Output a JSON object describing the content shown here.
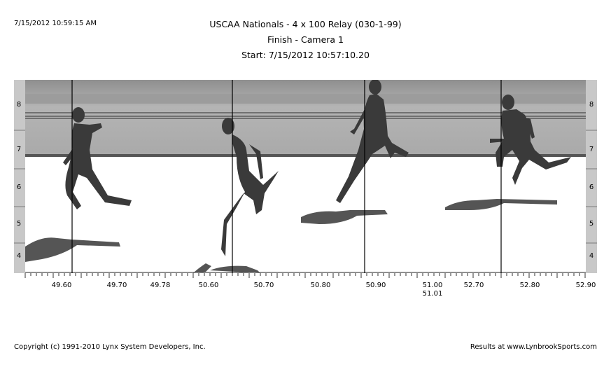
{
  "header": {
    "timestamp": "7/15/2012 10:59:15 AM",
    "title": "USCAA Nationals - 4 x 100 Relay (030-1-99)",
    "subtitle": "Finish - Camera 1",
    "start": "Start: 7/15/2012 10:57:10.20"
  },
  "lanes": {
    "left": [
      "8",
      "7",
      "6",
      "5",
      "4"
    ],
    "right": [
      "8",
      "7",
      "6",
      "5",
      "4"
    ]
  },
  "time_axis": {
    "labels": [
      "49.60",
      "49.70",
      "49.78",
      "50.60",
      "50.70",
      "50.80",
      "50.90",
      "51.00",
      "52.70",
      "52.80",
      "52.90"
    ],
    "sub_label": "51.01"
  },
  "footer": {
    "copyright": "Copyright (c) 1991-2010 Lynx System Developers, Inc.",
    "results": "Results at www.LynbrookSports.com"
  }
}
